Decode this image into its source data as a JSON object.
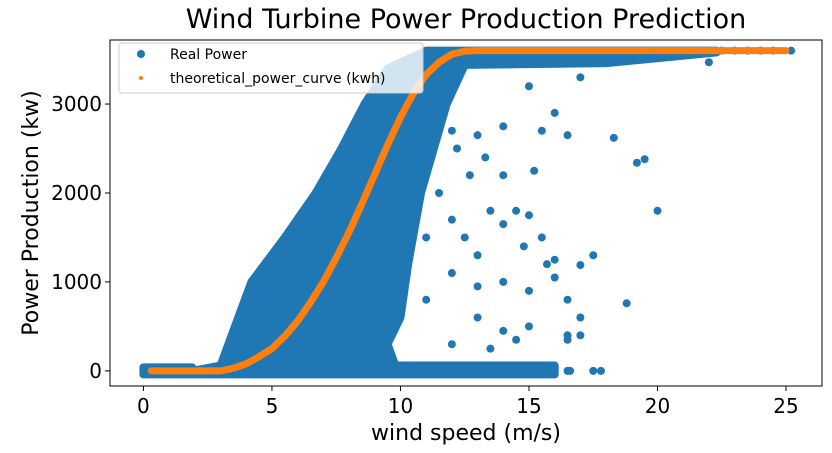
{
  "chart_data": {
    "type": "scatter",
    "title": "Wind Turbine Power Production Prediction",
    "xlabel": "wind speed (m/s)",
    "ylabel": "Power Production (kw)",
    "xlim": [
      -1.3,
      26.4
    ],
    "ylim": [
      -170,
      3720
    ],
    "xticks": [
      0,
      5,
      10,
      15,
      20,
      25
    ],
    "yticks": [
      0,
      1000,
      2000,
      3000
    ],
    "grid": false,
    "legend": {
      "placement": "top-left",
      "entries": [
        "Real Power",
        "theoretical_power_curve (kwh)"
      ]
    },
    "series": [
      {
        "name": "Real Power",
        "color": "#1f77b4",
        "dense_region": [
          [
            1.9,
            0
          ],
          [
            3,
            60
          ],
          [
            4.2,
            1000
          ],
          [
            5.5,
            1500
          ],
          [
            6.7,
            2000
          ],
          [
            7.7,
            2500
          ],
          [
            8.6,
            3000
          ],
          [
            9.5,
            3400
          ],
          [
            11,
            3600
          ],
          [
            22.3,
            3600
          ],
          [
            22.3,
            3580
          ],
          [
            18,
            3460
          ],
          [
            12.5,
            3440
          ],
          [
            11.8,
            3000
          ],
          [
            10.8,
            2000
          ],
          [
            10.3,
            1200
          ],
          [
            10,
            600
          ],
          [
            9.5,
            300
          ],
          [
            9.8,
            60
          ],
          [
            16,
            60
          ],
          [
            16,
            -40
          ],
          [
            0,
            -40
          ],
          [
            0,
            40
          ],
          [
            1.9,
            40
          ]
        ],
        "points": [
          [
            0,
            0
          ],
          [
            16.5,
            0
          ],
          [
            16.6,
            0
          ],
          [
            17.5,
            0
          ],
          [
            17.8,
            0
          ],
          [
            11,
            2800
          ],
          [
            12,
            2700
          ],
          [
            13,
            2650
          ],
          [
            14,
            2750
          ],
          [
            15.5,
            2700
          ],
          [
            16.5,
            2650
          ],
          [
            18.3,
            2620
          ],
          [
            19.5,
            2380
          ],
          [
            19.2,
            2340
          ],
          [
            17,
            3300
          ],
          [
            15,
            3200
          ],
          [
            16,
            2900
          ],
          [
            14,
            2200
          ],
          [
            13.5,
            1800
          ],
          [
            14.5,
            1800
          ],
          [
            15,
            1750
          ],
          [
            14,
            1650
          ],
          [
            20,
            1800
          ],
          [
            18.8,
            760
          ],
          [
            17,
            1190
          ],
          [
            17.5,
            1300
          ],
          [
            16,
            1250
          ],
          [
            15.5,
            1500
          ],
          [
            15.7,
            1200
          ],
          [
            16,
            1050
          ],
          [
            16.5,
            800
          ],
          [
            17,
            600
          ],
          [
            16.5,
            350
          ],
          [
            15,
            900
          ],
          [
            14,
            1000
          ],
          [
            13,
            1300
          ],
          [
            12.5,
            1500
          ],
          [
            12,
            1700
          ],
          [
            11.5,
            2000
          ],
          [
            11,
            1500
          ],
          [
            13,
            600
          ],
          [
            14,
            450
          ],
          [
            15,
            500
          ],
          [
            12,
            300
          ],
          [
            13.5,
            250
          ],
          [
            14.5,
            350
          ],
          [
            11,
            800
          ],
          [
            12,
            1100
          ],
          [
            13,
            950
          ],
          [
            17,
            400
          ],
          [
            16.5,
            400
          ],
          [
            13.3,
            2400
          ],
          [
            12.7,
            2200
          ],
          [
            15.2,
            2250
          ],
          [
            14.8,
            1400
          ],
          [
            12.2,
            2500
          ],
          [
            11.6,
            2900
          ],
          [
            22,
            3470
          ],
          [
            22.5,
            3600
          ],
          [
            23,
            3600
          ],
          [
            23.5,
            3600
          ],
          [
            24,
            3600
          ],
          [
            24.5,
            3600
          ],
          [
            25.2,
            3600
          ]
        ]
      },
      {
        "name": "theoretical_power_curve (kwh)",
        "color": "#ff7f0e",
        "points": [
          [
            0.3,
            0
          ],
          [
            3,
            0
          ],
          [
            3.5,
            30
          ],
          [
            4,
            80
          ],
          [
            4.5,
            160
          ],
          [
            5,
            250
          ],
          [
            5.5,
            390
          ],
          [
            6,
            560
          ],
          [
            6.5,
            770
          ],
          [
            7,
            1000
          ],
          [
            7.5,
            1270
          ],
          [
            8,
            1560
          ],
          [
            8.5,
            1880
          ],
          [
            9,
            2210
          ],
          [
            9.5,
            2540
          ],
          [
            10,
            2850
          ],
          [
            10.5,
            3120
          ],
          [
            11,
            3330
          ],
          [
            11.5,
            3470
          ],
          [
            12,
            3560
          ],
          [
            12.5,
            3595
          ],
          [
            13,
            3600
          ],
          [
            18,
            3600
          ],
          [
            22.5,
            3600
          ],
          [
            24,
            3600
          ],
          [
            25,
            3600
          ]
        ]
      }
    ]
  }
}
